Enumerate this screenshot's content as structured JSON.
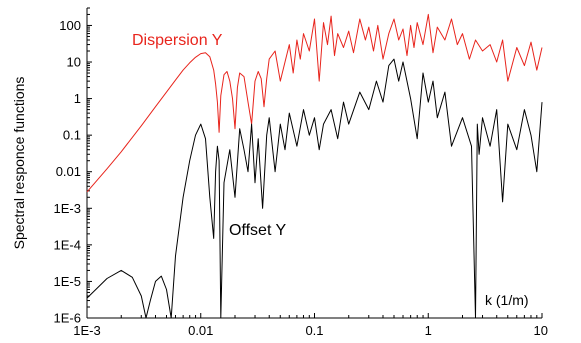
{
  "chart_data": {
    "type": "line",
    "title": "",
    "xlabel": "k (1/m)",
    "ylabel": "Spectral responce functions",
    "x_scale": "log",
    "y_scale": "log",
    "xlim": [
      0.001,
      10
    ],
    "ylim": [
      1e-06,
      300
    ],
    "grid": false,
    "x_ticks": [
      0.001,
      0.01,
      0.1,
      1,
      10
    ],
    "x_tick_labels": [
      "1E-3",
      "0.01",
      "0.1",
      "1",
      "10"
    ],
    "y_ticks": [
      1e-06,
      1e-05,
      0.0001,
      0.001,
      0.01,
      0.1,
      1,
      10,
      100
    ],
    "y_tick_labels": [
      "1E-6",
      "1E-5",
      "1E-4",
      "1E-3",
      "0.01",
      "0.1",
      "1",
      "10",
      "100"
    ],
    "annotations": [
      {
        "text": "Dispersion Y",
        "color": "#e8241c"
      },
      {
        "text": "Offset Y",
        "color": "#000000"
      }
    ],
    "series": [
      {
        "name": "Dispersion Y",
        "color": "#e8241c",
        "x": [
          0.001,
          0.0015,
          0.002,
          0.003,
          0.004,
          0.005,
          0.006,
          0.007,
          0.008,
          0.009,
          0.01,
          0.011,
          0.012,
          0.013,
          0.0135,
          0.014,
          0.0145,
          0.015,
          0.016,
          0.017,
          0.018,
          0.019,
          0.02,
          0.021,
          0.022,
          0.024,
          0.026,
          0.028,
          0.03,
          0.032,
          0.034,
          0.036,
          0.038,
          0.04,
          0.045,
          0.05,
          0.055,
          0.06,
          0.065,
          0.07,
          0.075,
          0.08,
          0.09,
          0.1,
          0.11,
          0.12,
          0.13,
          0.14,
          0.15,
          0.16,
          0.18,
          0.2,
          0.22,
          0.25,
          0.28,
          0.3,
          0.33,
          0.36,
          0.4,
          0.45,
          0.5,
          0.55,
          0.6,
          0.65,
          0.7,
          0.75,
          0.8,
          0.9,
          1.0,
          1.1,
          1.2,
          1.4,
          1.6,
          1.8,
          2.0,
          2.3,
          2.6,
          3.0,
          3.5,
          4.0,
          4.5,
          5.0,
          6.0,
          7.0,
          8.0,
          9.0,
          10.0
        ],
        "y": [
          0.0028,
          0.012,
          0.035,
          0.18,
          0.6,
          1.5,
          3.2,
          6.0,
          9.5,
          13.5,
          17,
          18,
          14,
          6,
          2.5,
          0.8,
          0.12,
          1.2,
          4.5,
          5.5,
          3.0,
          1.0,
          0.15,
          2.0,
          5.0,
          4.0,
          0.8,
          0.2,
          3.0,
          5.5,
          3.5,
          0.6,
          3.5,
          12,
          20,
          3,
          10,
          30,
          5,
          40,
          12,
          60,
          20,
          150,
          3,
          120,
          30,
          180,
          15,
          60,
          25,
          70,
          18,
          150,
          40,
          90,
          20,
          100,
          12,
          60,
          150,
          40,
          80,
          15,
          100,
          25,
          120,
          30,
          200,
          18,
          90,
          40,
          150,
          30,
          60,
          12,
          40,
          20,
          30,
          10,
          40,
          3,
          25,
          8,
          35,
          6,
          25
        ]
      },
      {
        "name": "Offset Y",
        "color": "#000000",
        "x": [
          0.001,
          0.0015,
          0.002,
          0.0025,
          0.003,
          0.0033,
          0.0036,
          0.004,
          0.0045,
          0.005,
          0.0055,
          0.006,
          0.007,
          0.008,
          0.009,
          0.01,
          0.011,
          0.012,
          0.013,
          0.0135,
          0.014,
          0.0145,
          0.015,
          0.016,
          0.018,
          0.02,
          0.022,
          0.024,
          0.026,
          0.028,
          0.03,
          0.032,
          0.035,
          0.038,
          0.04,
          0.045,
          0.05,
          0.055,
          0.06,
          0.07,
          0.08,
          0.09,
          0.1,
          0.11,
          0.12,
          0.14,
          0.16,
          0.18,
          0.2,
          0.25,
          0.3,
          0.35,
          0.4,
          0.45,
          0.5,
          0.55,
          0.6,
          0.7,
          0.8,
          0.9,
          1.0,
          1.1,
          1.2,
          1.4,
          1.6,
          2.0,
          2.4,
          2.6,
          2.7,
          2.8,
          3.0,
          3.5,
          4.0,
          4.5,
          5.0,
          6.0,
          7.0,
          8.0,
          9.0,
          10.0
        ],
        "y": [
          3.5e-06,
          1.2e-05,
          2e-05,
          1.3e-05,
          4e-06,
          1e-06,
          3e-06,
          1e-05,
          1.4e-05,
          6e-06,
          1e-06,
          5e-05,
          0.002,
          0.02,
          0.1,
          0.2,
          0.08,
          0.002,
          0.00015,
          0.01,
          0.05,
          0.02,
          1e-06,
          0.005,
          0.04,
          0.002,
          0.15,
          0.04,
          0.01,
          0.2,
          0.005,
          0.08,
          0.001,
          0.1,
          0.3,
          0.01,
          0.2,
          0.04,
          0.4,
          0.05,
          0.5,
          0.1,
          0.3,
          0.04,
          0.2,
          0.5,
          0.08,
          0.8,
          0.2,
          1.5,
          0.5,
          3,
          0.8,
          8,
          12,
          3,
          10,
          1,
          0.08,
          5,
          0.8,
          3,
          0.3,
          1.5,
          0.05,
          0.3,
          0.05,
          1e-06,
          0.2,
          0.03,
          0.3,
          0.05,
          0.5,
          0.0015,
          0.2,
          0.04,
          0.5,
          0.1,
          0.01,
          0.8
        ]
      }
    ]
  }
}
